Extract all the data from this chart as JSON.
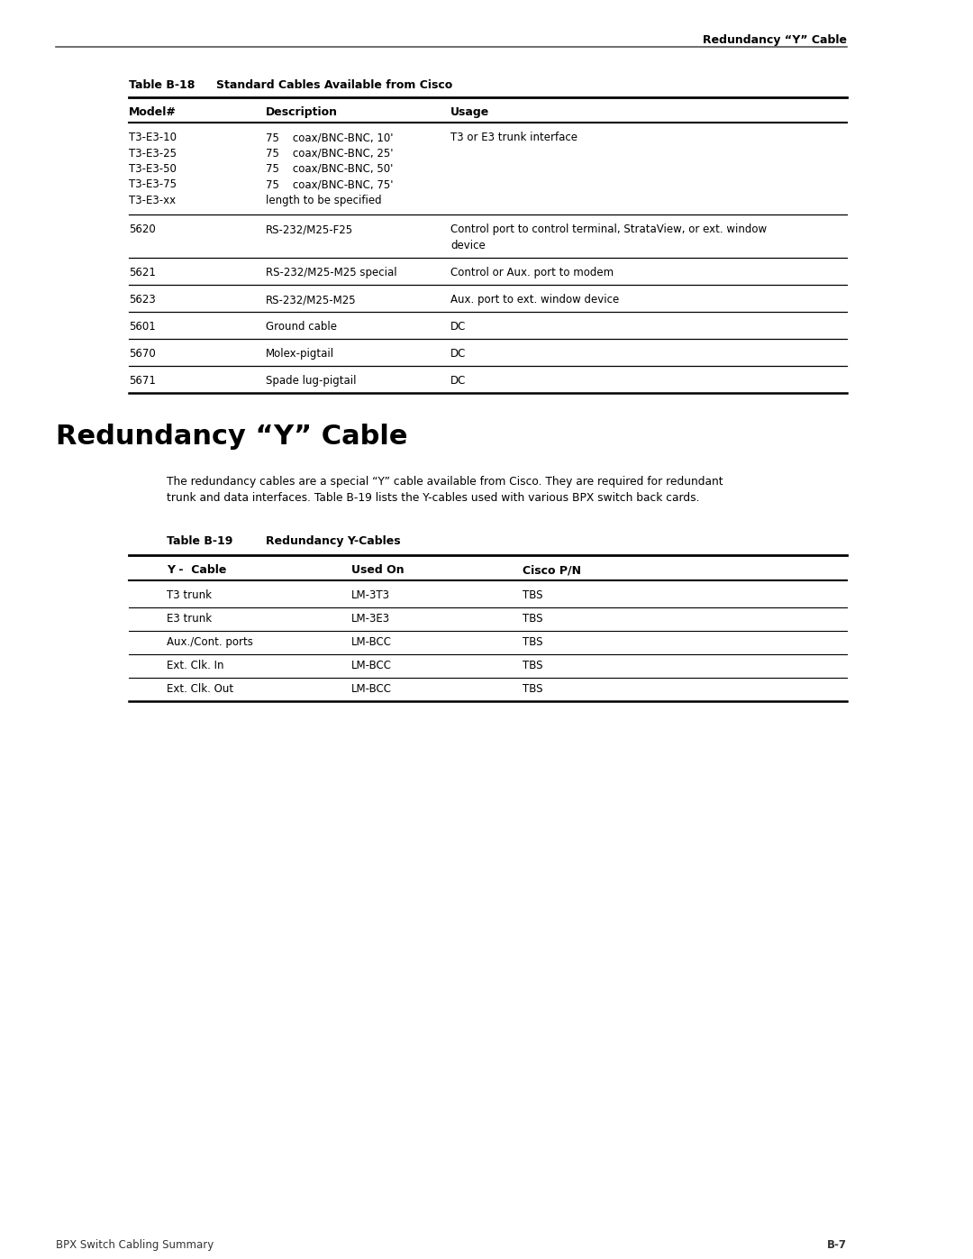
{
  "page_header_right": "Redundancy “Y” Cable",
  "table1_label": "Table B-18",
  "table1_title": "Standard Cables Available from Cisco",
  "table1_col_headers": [
    "Model#",
    "Description",
    "Usage"
  ],
  "table1_rows": [
    {
      "model": "T3-E3-10\nT3-E3-25\nT3-E3-50\nT3-E3-75\nT3-E3-xx",
      "description": "75    coax/BNC-BNC, 10'\n75    coax/BNC-BNC, 25'\n75    coax/BNC-BNC, 50'\n75    coax/BNC-BNC, 75'\nlength to be specified",
      "usage": "T3 or E3 trunk interface"
    },
    {
      "model": "5620",
      "description": "RS-232/M25-F25",
      "usage": "Control port to control terminal, StrataView, or ext. window\ndevice"
    },
    {
      "model": "5621",
      "description": "RS-232/M25-M25 special",
      "usage": "Control or Aux. port to modem"
    },
    {
      "model": "5623",
      "description": "RS-232/M25-M25",
      "usage": "Aux. port to ext. window device"
    },
    {
      "model": "5601",
      "description": "Ground cable",
      "usage": "DC"
    },
    {
      "model": "5670",
      "description": "Molex-pigtail",
      "usage": "DC"
    },
    {
      "model": "5671",
      "description": "Spade lug-pigtail",
      "usage": "DC"
    }
  ],
  "section_title": "Redundancy “Y” Cable",
  "section_body1": "The redundancy cables are a special “Y” cable available from Cisco. They are required for redundant",
  "section_body2": "trunk and data interfaces. Table B-19 lists the Y-cables used with various BPX switch back cards.",
  "table2_label": "Table B-19",
  "table2_title": "Redundancy Y-Cables",
  "table2_col_headers": [
    "Y -  Cable",
    "Used On",
    "Cisco P/N"
  ],
  "table2_rows": [
    {
      "col1": "T3 trunk",
      "col2": "LM-3T3",
      "col3": "TBS"
    },
    {
      "col1": "E3 trunk",
      "col2": "LM-3E3",
      "col3": "TBS"
    },
    {
      "col1": "Aux./Cont. ports",
      "col2": "LM-BCC",
      "col3": "TBS"
    },
    {
      "col1": "Ext. Clk. In",
      "col2": "LM-BCC",
      "col3": "TBS"
    },
    {
      "col1": "Ext. Clk. Out",
      "col2": "LM-BCC",
      "col3": "TBS"
    }
  ],
  "footer_left": "BPX Switch Cabling Summary",
  "footer_right": "B-7",
  "bg_color": "#ffffff"
}
